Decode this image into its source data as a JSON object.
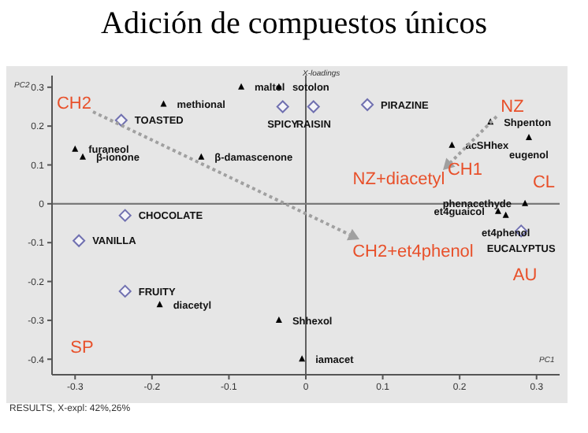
{
  "chart_data": {
    "type": "scatter",
    "title": "Adición de compuestos únicos",
    "xlabel": "PC1",
    "ylabel": "PC2",
    "xlim": [
      -0.33,
      0.33
    ],
    "ylim": [
      -0.44,
      0.33
    ],
    "xticks": [
      -0.3,
      -0.2,
      -0.1,
      0,
      0.1,
      0.2,
      0.3
    ],
    "yticks": [
      -0.4,
      -0.3,
      -0.2,
      -0.1,
      0,
      0.1,
      0.2,
      0.3
    ],
    "grid": false,
    "legend": false,
    "ref_lines": [
      {
        "axis": "x",
        "value": 0,
        "color": "#606060"
      },
      {
        "axis": "y",
        "value": 0,
        "color": "#7a7a7a"
      }
    ],
    "series": [
      {
        "marker": "triangle",
        "color": "#000000",
        "x": [
          -0.185,
          -0.084,
          -0.035,
          -0.3,
          -0.29,
          -0.136,
          0.24,
          0.19,
          0.29,
          0.285,
          0.25,
          0.26,
          -0.19,
          -0.035,
          -0.005
        ],
        "values": [
          0.256,
          0.3,
          0.3,
          0.14,
          0.12,
          0.12,
          0.21,
          0.15,
          0.17,
          0.0,
          -0.02,
          -0.03,
          -0.26,
          -0.3,
          -0.4
        ],
        "value_labels": [
          "methional",
          "maltol",
          "sotolon",
          "furaneol",
          "β-ionone",
          "β-damascenone",
          "Shpenton",
          "acSHhex",
          "eugenol",
          "phenacethyde",
          "et4guaicol",
          "et4phenol",
          "diacetyl",
          "Shhexol",
          "iamacet"
        ]
      },
      {
        "marker": "diamond",
        "color": "#7070b0",
        "x": [
          -0.24,
          -0.03,
          0.01,
          0.08,
          -0.235,
          -0.295,
          -0.235,
          0.28
        ],
        "values": [
          0.215,
          0.25,
          0.25,
          0.255,
          -0.03,
          -0.095,
          -0.225,
          -0.07
        ],
        "value_labels": [
          "TOASTED",
          "SPICY",
          "RAISIN",
          "PIRAZINE",
          "CHOCOLATE",
          "VANILLA",
          "FRUITY",
          "EUCALYPTUS"
        ]
      }
    ],
    "annotations": [
      "CH2",
      "NZ",
      "CH1",
      "NZ+diacetyl",
      "CL",
      "CH2+et4phenol",
      "AU",
      "SP",
      "X-loadings",
      "RESULTS, X-expl: 42%,26%"
    ]
  }
}
